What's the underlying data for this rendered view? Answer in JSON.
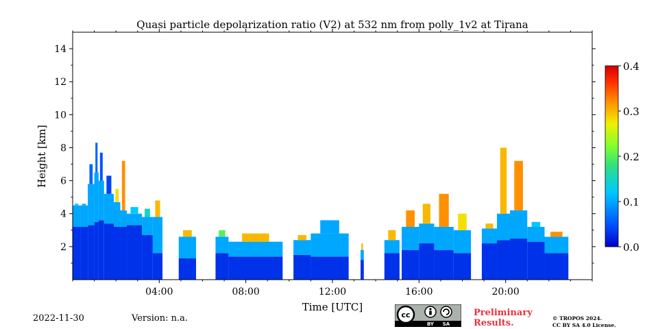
{
  "chart_data": {
    "type": "heatmap",
    "title": "Quasi particle depolarization ratio (V2) at 532 nm from polly_1v2 at Tirana",
    "xlabel": "Time [UTC]",
    "ylabel": "Height [km]",
    "xlim_hours": [
      0,
      24
    ],
    "ylim_km": [
      0,
      15
    ],
    "x_ticks": [
      {
        "value": 4,
        "label": "04:00"
      },
      {
        "value": 8,
        "label": "08:00"
      },
      {
        "value": 12,
        "label": "12:00"
      },
      {
        "value": 16,
        "label": "16:00"
      },
      {
        "value": 20,
        "label": "20:00"
      }
    ],
    "y_ticks": [
      {
        "value": 2,
        "label": "2"
      },
      {
        "value": 4,
        "label": "4"
      },
      {
        "value": 6,
        "label": "6"
      },
      {
        "value": 8,
        "label": "8"
      },
      {
        "value": 10,
        "label": "10"
      },
      {
        "value": 12,
        "label": "12"
      },
      {
        "value": 14,
        "label": "14"
      }
    ],
    "colorbar": {
      "range": [
        0,
        0.4
      ],
      "ticks": [
        {
          "value": 0.0,
          "label": "0.0"
        },
        {
          "value": 0.1,
          "label": "0.1"
        },
        {
          "value": 0.2,
          "label": "0.2"
        },
        {
          "value": 0.3,
          "label": "0.3"
        },
        {
          "value": 0.4,
          "label": "0.4"
        }
      ],
      "colormap": "jet"
    },
    "profiles": [
      {
        "start": 0.0,
        "end": 0.35,
        "base_top": 3.2,
        "top": 4.5,
        "plume_top": 4.6,
        "plume_value": 0.12
      },
      {
        "start": 0.35,
        "end": 0.7,
        "base_top": 3.2,
        "top": 4.5,
        "plume_top": 4.6,
        "plume_value": 0.1
      },
      {
        "start": 0.7,
        "end": 1.0,
        "base_top": 3.3,
        "top": 5.8,
        "plume_top": 7.0,
        "plume_value": 0.06
      },
      {
        "start": 1.0,
        "end": 1.2,
        "base_top": 3.5,
        "top": 6.5,
        "plume_top": 8.3,
        "plume_value": 0.06
      },
      {
        "start": 1.2,
        "end": 1.45,
        "base_top": 3.6,
        "top": 6.0,
        "plume_top": 7.7,
        "plume_value": 0.05
      },
      {
        "start": 1.45,
        "end": 1.9,
        "base_top": 3.4,
        "top": 5.2,
        "plume_top": 6.3,
        "plume_value": 0.04
      },
      {
        "start": 1.9,
        "end": 2.2,
        "base_top": 3.2,
        "top": 4.7,
        "plume_top": 5.5,
        "plume_value": 0.28
      },
      {
        "start": 2.2,
        "end": 2.5,
        "base_top": 3.2,
        "top": 4.2,
        "plume_top": 7.2,
        "plume_value": 0.32
      },
      {
        "start": 2.5,
        "end": 3.2,
        "base_top": 3.3,
        "top": 4.0,
        "plume_top": 4.4,
        "plume_value": 0.12
      },
      {
        "start": 3.2,
        "end": 3.7,
        "base_top": 2.7,
        "top": 3.8,
        "plume_top": 4.3,
        "plume_value": 0.15
      },
      {
        "start": 3.7,
        "end": 4.15,
        "base_top": 1.6,
        "top": 3.8,
        "plume_top": 4.8,
        "plume_value": 0.3
      },
      {
        "start": 4.9,
        "end": 5.7,
        "base_top": 1.3,
        "top": 2.6,
        "plume_top": 3.0,
        "plume_value": 0.3
      },
      {
        "start": 6.6,
        "end": 7.2,
        "base_top": 1.6,
        "top": 2.6,
        "plume_top": 3.0,
        "plume_value": 0.2
      },
      {
        "start": 7.2,
        "end": 9.7,
        "base_top": 1.4,
        "top": 2.3,
        "plume_top": 2.8,
        "plume_value": 0.3
      },
      {
        "start": 10.2,
        "end": 11.0,
        "base_top": 1.5,
        "top": 2.4,
        "plume_top": 2.7,
        "plume_value": 0.3
      },
      {
        "start": 11.0,
        "end": 12.75,
        "base_top": 1.4,
        "top": 2.8,
        "plume_top": 3.6,
        "plume_value": 0.1
      },
      {
        "start": 13.3,
        "end": 13.45,
        "base_top": 1.2,
        "top": 1.8,
        "plume_top": 2.2,
        "plume_value": 0.3
      },
      {
        "start": 14.4,
        "end": 15.1,
        "base_top": 1.6,
        "top": 2.4,
        "plume_top": 3.0,
        "plume_value": 0.3
      },
      {
        "start": 15.2,
        "end": 16.0,
        "base_top": 1.8,
        "top": 3.2,
        "plume_top": 4.2,
        "plume_value": 0.32
      },
      {
        "start": 16.0,
        "end": 16.7,
        "base_top": 2.2,
        "top": 3.4,
        "plume_top": 4.6,
        "plume_value": 0.3
      },
      {
        "start": 16.7,
        "end": 17.6,
        "base_top": 1.8,
        "top": 3.2,
        "plume_top": 5.2,
        "plume_value": 0.32
      },
      {
        "start": 17.6,
        "end": 18.4,
        "base_top": 1.6,
        "top": 3.0,
        "plume_top": 4.0,
        "plume_value": 0.28
      },
      {
        "start": 18.9,
        "end": 19.6,
        "base_top": 2.2,
        "top": 3.1,
        "plume_top": 3.4,
        "plume_value": 0.3
      },
      {
        "start": 19.6,
        "end": 20.2,
        "base_top": 2.4,
        "top": 4.0,
        "plume_top": 8.0,
        "plume_value": 0.3
      },
      {
        "start": 20.2,
        "end": 21.0,
        "base_top": 2.5,
        "top": 4.2,
        "plume_top": 7.2,
        "plume_value": 0.32
      },
      {
        "start": 21.0,
        "end": 21.8,
        "base_top": 2.3,
        "top": 3.2,
        "plume_top": 3.5,
        "plume_value": 0.12
      },
      {
        "start": 21.8,
        "end": 22.9,
        "base_top": 1.6,
        "top": 2.6,
        "plume_top": 2.9,
        "plume_value": 0.32
      }
    ]
  },
  "footer": {
    "date": "2022-11-30",
    "version": "Version: n.a.",
    "preliminary_line1": "Preliminary",
    "preliminary_line2": "Results.",
    "copyright_line1": "© TROPOS 2024.",
    "copyright_line2": "CC BY SA 4.0 License.",
    "license_badge": {
      "cc": "cc",
      "by": "BY",
      "sa": "SA"
    }
  },
  "colors": {
    "background": "#ffffff",
    "preliminary_text": "#e8323c",
    "badge_background": "#aab2ab",
    "badge_bottom": "#000000"
  }
}
